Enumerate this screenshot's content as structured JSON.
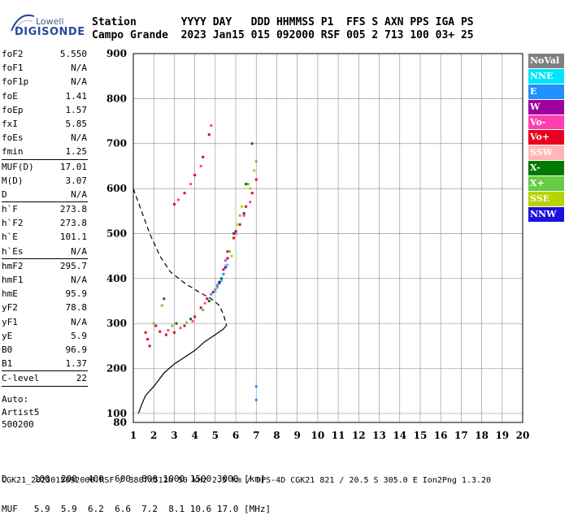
{
  "logo": {
    "small": "Lowell",
    "big": "DIGISONDE"
  },
  "header": {
    "row1": "Station       YYYY DAY   DDD HHMMSS P1  FFS S AXN PPS IGA PS",
    "row2": "Campo Grande  2023 Jan15 015 092000 RSF 005 2 713 100 03+ 25"
  },
  "params": [
    {
      "name": "foF2",
      "value": "5.550"
    },
    {
      "name": "foF1",
      "value": "N/A"
    },
    {
      "name": "foF1p",
      "value": "N/A"
    },
    {
      "name": "foE",
      "value": "1.41"
    },
    {
      "name": "foEp",
      "value": "1.57"
    },
    {
      "name": "fxI",
      "value": "5.85"
    },
    {
      "name": "foEs",
      "value": "N/A"
    },
    {
      "name": "fmin",
      "value": "1.25"
    },
    {
      "sep": true
    },
    {
      "name": "MUF(D)",
      "value": "17.01"
    },
    {
      "name": "M(D)",
      "value": "3.07"
    },
    {
      "name": "D",
      "value": "N/A"
    },
    {
      "sep": true
    },
    {
      "name": "h`F",
      "value": "273.8"
    },
    {
      "name": "h`F2",
      "value": "273.8"
    },
    {
      "name": "h`E",
      "value": "101.1"
    },
    {
      "name": "h`Es",
      "value": "N/A"
    },
    {
      "sep": true
    },
    {
      "name": "hmF2",
      "value": "295.7"
    },
    {
      "name": "hmF1",
      "value": "N/A"
    },
    {
      "name": "hmE",
      "value": "95.9"
    },
    {
      "name": "yF2",
      "value": "78.8"
    },
    {
      "name": "yF1",
      "value": "N/A"
    },
    {
      "name": "yE",
      "value": "5.9"
    },
    {
      "name": "B0",
      "value": "96.9"
    },
    {
      "name": "B1",
      "value": "1.37"
    },
    {
      "sep": true
    },
    {
      "name": "C-level",
      "value": "22"
    },
    {
      "sep": true
    }
  ],
  "auto": [
    "Auto:",
    "Artist5",
    "500200"
  ],
  "legend": [
    {
      "label": "NoVal",
      "bg": "#808080",
      "fg": "#ffffff"
    },
    {
      "label": "NNE",
      "bg": "#00e5ff",
      "fg": "#ffffff"
    },
    {
      "label": "E",
      "bg": "#1e90ff",
      "fg": "#ffffff"
    },
    {
      "label": "W",
      "bg": "#a000a0",
      "fg": "#ffffff"
    },
    {
      "label": "Vo-",
      "bg": "#ff3fb0",
      "fg": "#ffffff"
    },
    {
      "label": "Vo+",
      "bg": "#e8001c",
      "fg": "#ffffff"
    },
    {
      "label": "SSW",
      "bg": "#ffb6b6",
      "fg": "#ffffff"
    },
    {
      "label": "X-",
      "bg": "#007a00",
      "fg": "#ffffff"
    },
    {
      "label": "X+",
      "bg": "#66cc44",
      "fg": "#ffffff"
    },
    {
      "label": "SSE",
      "bg": "#b8d400",
      "fg": "#ffffff"
    },
    {
      "label": "NNW",
      "bg": "#1a10e0",
      "fg": "#ffffff"
    }
  ],
  "footer": {
    "row1": "D     100  200  400  600  800 1000 1500 3000 [km]",
    "row2": "MUF   5.9  5.9  6.2  6.6  7.2  8.1 10.6 17.0 [MHz]",
    "line": "CGK21_2023015092000.RSF / 380fx512h 50 kHz 2.5 km / DPS-4D CGK21 821 / 20.5 S 305.0 E Ion2Png 1.3.20"
  },
  "chart_data": {
    "type": "scatter",
    "title": "",
    "xlabel": "",
    "ylabel": "",
    "xlim": [
      1,
      20
    ],
    "ylim": [
      80,
      900
    ],
    "x_ticks": [
      1,
      2,
      3,
      4,
      5,
      6,
      7,
      8,
      9,
      10,
      11,
      12,
      13,
      14,
      15,
      16,
      17,
      18,
      19,
      20
    ],
    "y_ticks": [
      100,
      200,
      300,
      400,
      500,
      600,
      700,
      800,
      900
    ],
    "grid": true,
    "series": [
      {
        "name": "Vo+",
        "color": "#e8001c",
        "points": [
          [
            1.6,
            280
          ],
          [
            1.7,
            265
          ],
          [
            1.8,
            250
          ],
          [
            2.1,
            295
          ],
          [
            2.3,
            282
          ],
          [
            2.6,
            275
          ],
          [
            3.0,
            280
          ],
          [
            3.5,
            295
          ],
          [
            4.0,
            315
          ],
          [
            4.3,
            335
          ],
          [
            4.6,
            355
          ],
          [
            4.9,
            370
          ],
          [
            5.2,
            390
          ],
          [
            5.4,
            420
          ],
          [
            5.6,
            460
          ],
          [
            5.9,
            490
          ],
          [
            6.2,
            520
          ],
          [
            6.5,
            560
          ],
          [
            6.8,
            590
          ],
          [
            7.0,
            620
          ],
          [
            3.0,
            565
          ],
          [
            3.5,
            590
          ],
          [
            4.0,
            630
          ],
          [
            4.4,
            670
          ],
          [
            4.7,
            720
          ]
        ]
      },
      {
        "name": "Vo-",
        "color": "#ff3fb0",
        "points": [
          [
            2.7,
            285
          ],
          [
            3.3,
            290
          ],
          [
            3.9,
            305
          ],
          [
            4.5,
            345
          ],
          [
            5.0,
            375
          ],
          [
            5.5,
            440
          ],
          [
            6.0,
            500
          ],
          [
            6.4,
            540
          ],
          [
            6.7,
            570
          ],
          [
            3.2,
            575
          ],
          [
            3.8,
            610
          ],
          [
            4.3,
            650
          ],
          [
            4.8,
            740
          ]
        ]
      },
      {
        "name": "X+",
        "color": "#66cc44",
        "points": [
          [
            2.0,
            300
          ],
          [
            2.4,
            340
          ],
          [
            2.9,
            295
          ],
          [
            3.6,
            302
          ],
          [
            4.4,
            330
          ],
          [
            5.1,
            380
          ],
          [
            5.7,
            460
          ],
          [
            6.2,
            540
          ],
          [
            6.6,
            610
          ],
          [
            7.0,
            660
          ]
        ]
      },
      {
        "name": "X-",
        "color": "#007a00",
        "points": [
          [
            2.5,
            355
          ],
          [
            3.1,
            300
          ],
          [
            3.8,
            310
          ],
          [
            4.7,
            350
          ],
          [
            5.3,
            400
          ],
          [
            5.9,
            500
          ],
          [
            6.5,
            610
          ],
          [
            6.8,
            700
          ]
        ]
      },
      {
        "name": "SSE",
        "color": "#b8d400",
        "points": [
          [
            5.8,
            450
          ],
          [
            6.1,
            520
          ],
          [
            6.3,
            560
          ],
          [
            6.7,
            600
          ],
          [
            6.9,
            640
          ]
        ]
      },
      {
        "name": "E",
        "color": "#1e90ff",
        "points": [
          [
            4.8,
            365
          ],
          [
            5.1,
            385
          ],
          [
            5.4,
            410
          ],
          [
            7.0,
            160
          ],
          [
            7.0,
            130
          ]
        ]
      },
      {
        "name": "NNE",
        "color": "#00e5ff",
        "points": [
          [
            5.0,
            372
          ],
          [
            5.3,
            395
          ],
          [
            5.6,
            430
          ]
        ]
      },
      {
        "name": "NNW",
        "color": "#1a10e0",
        "points": [
          [
            5.2,
            392
          ],
          [
            5.5,
            425
          ]
        ]
      },
      {
        "name": "W",
        "color": "#a000a0",
        "points": [
          [
            5.6,
            445
          ],
          [
            6.0,
            505
          ],
          [
            6.4,
            545
          ]
        ]
      },
      {
        "name": "SSW",
        "color": "#ffb6b6",
        "points": [
          [
            5.5,
            430
          ],
          [
            6.0,
            495
          ]
        ]
      }
    ],
    "profile_curve": {
      "color": "#000000",
      "points": [
        [
          1.25,
          100
        ],
        [
          1.41,
          120
        ],
        [
          1.6,
          140
        ],
        [
          2.0,
          160
        ],
        [
          2.5,
          190
        ],
        [
          3.0,
          210
        ],
        [
          3.5,
          225
        ],
        [
          4.0,
          240
        ],
        [
          4.5,
          260
        ],
        [
          5.0,
          275
        ],
        [
          5.4,
          288
        ],
        [
          5.55,
          296
        ]
      ]
    },
    "trace_curve": {
      "color": "#000000",
      "dashed": true,
      "points": [
        [
          1.0,
          600
        ],
        [
          1.4,
          550
        ],
        [
          1.8,
          500
        ],
        [
          2.3,
          450
        ],
        [
          2.8,
          415
        ],
        [
          3.5,
          390
        ],
        [
          4.2,
          370
        ],
        [
          4.8,
          355
        ],
        [
          5.2,
          340
        ],
        [
          5.4,
          320
        ],
        [
          5.55,
          296
        ]
      ]
    }
  }
}
